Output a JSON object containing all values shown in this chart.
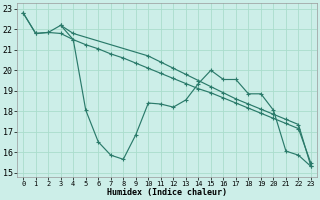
{
  "title": "",
  "xlabel": "Humidex (Indice chaleur)",
  "bg_color": "#cceee8",
  "grid_color": "#aaddcc",
  "line_color": "#2a7a6a",
  "xlim": [
    -0.5,
    23.5
  ],
  "ylim": [
    14.8,
    23.3
  ],
  "xticks": [
    0,
    1,
    2,
    3,
    4,
    5,
    6,
    7,
    8,
    9,
    10,
    11,
    12,
    13,
    14,
    15,
    16,
    17,
    18,
    19,
    20,
    21,
    22,
    23
  ],
  "yticks": [
    15,
    16,
    17,
    18,
    19,
    20,
    21,
    22,
    23
  ],
  "line1_x": [
    0,
    1,
    2,
    3,
    4,
    10,
    11,
    12,
    13,
    14,
    15,
    16,
    17,
    18,
    19,
    20,
    21,
    22,
    23
  ],
  "line1_y": [
    22.8,
    21.8,
    21.85,
    22.2,
    21.8,
    20.7,
    20.4,
    20.1,
    19.8,
    19.5,
    19.2,
    18.9,
    18.6,
    18.35,
    18.1,
    17.85,
    17.6,
    17.35,
    15.3
  ],
  "line2_x": [
    0,
    1,
    2,
    3,
    4,
    5,
    6,
    7,
    8,
    9,
    10,
    11,
    12,
    13,
    14,
    15,
    16,
    17,
    18,
    19,
    20,
    21,
    22,
    23
  ],
  "line2_y": [
    22.8,
    21.8,
    21.85,
    21.8,
    21.5,
    21.25,
    21.05,
    20.8,
    20.6,
    20.35,
    20.1,
    19.85,
    19.6,
    19.35,
    19.1,
    18.9,
    18.65,
    18.4,
    18.15,
    17.9,
    17.65,
    17.4,
    17.15,
    15.45
  ],
  "line3_x": [
    3,
    4,
    5,
    6,
    7,
    8,
    9,
    10,
    11,
    12,
    13,
    14,
    15,
    16,
    17,
    18,
    19,
    20,
    21,
    22,
    23
  ],
  "line3_y": [
    22.2,
    21.5,
    18.05,
    16.5,
    15.85,
    15.65,
    16.85,
    18.4,
    18.35,
    18.2,
    18.55,
    19.35,
    20.0,
    19.55,
    19.55,
    18.85,
    18.85,
    18.05,
    16.05,
    15.85,
    15.3
  ]
}
